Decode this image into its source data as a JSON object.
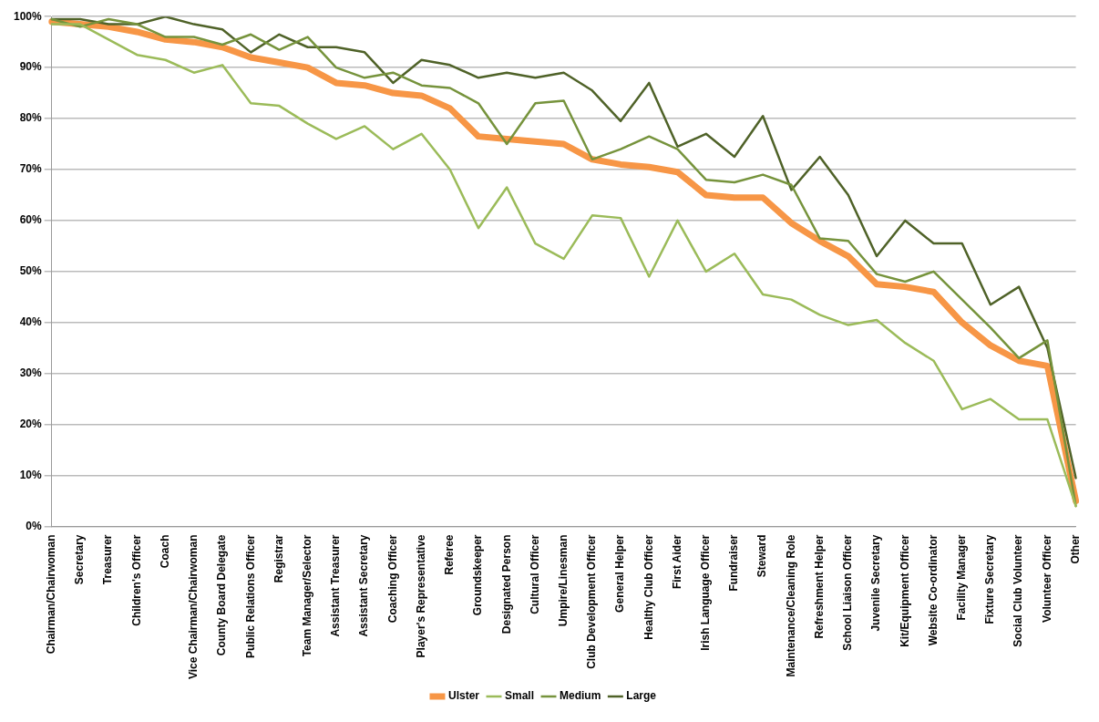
{
  "chart_data": {
    "type": "line",
    "categories": [
      "Chairman/Chairwoman",
      "Secretary",
      "Treasurer",
      "Children's Officer",
      "Coach",
      "Vice Chairman/Chairwoman",
      "County Board Delegate",
      "Public Relations Officer",
      "Registrar",
      "Team Manager/Selector",
      "Assistant Treasurer",
      "Assistant Secretary",
      "Coaching Officer",
      "Player's Representative",
      "Referee",
      "Groundskeeper",
      "Designated Person",
      "Cultural Officer",
      "Umpire/Linesman",
      "Club Development Officer",
      "General Helper",
      "Healthy Club Officer",
      "First Aider",
      "Irish Language Officer",
      "Fundraiser",
      "Steward",
      "Maintenance/Cleaning Role",
      "Refreshment Helper",
      "School Liaison Officer",
      "Juvenile Secretary",
      "Kit/Equipment Officer",
      "Website Co-ordinator",
      "Facility Manager",
      "Fixture Secretary",
      "Social Club Volunteer",
      "Volunteer Officer",
      "Other"
    ],
    "series": [
      {
        "name": "Ulster",
        "color": "#f79646",
        "values": [
          99,
          98.5,
          98,
          97,
          95.5,
          95,
          94,
          92,
          91,
          90,
          87,
          86.5,
          85,
          84.5,
          82,
          76.5,
          76,
          75.5,
          75,
          72,
          71,
          70.5,
          69.5,
          65,
          64.5,
          64.5,
          59.5,
          56,
          53,
          47.5,
          47,
          46,
          40,
          35.5,
          32.5,
          31.5,
          5
        ]
      },
      {
        "name": "Small",
        "color": "#9bbb59",
        "values": [
          98.5,
          98.5,
          95.5,
          92.5,
          91.5,
          89,
          90.5,
          83,
          82.5,
          79,
          76,
          78.5,
          74,
          77,
          70,
          58.5,
          66.5,
          55.5,
          52.5,
          61,
          60.5,
          49,
          60,
          50,
          53.5,
          45.5,
          44.5,
          41.5,
          39.5,
          40.5,
          36,
          32.5,
          23,
          25,
          21,
          21,
          4
        ]
      },
      {
        "name": "Medium",
        "color": "#76933c",
        "values": [
          99.5,
          98,
          99.5,
          98.5,
          96,
          96,
          94.5,
          96.5,
          93.5,
          96,
          90,
          88,
          89,
          86.5,
          86,
          83,
          75,
          83,
          83.5,
          72,
          74,
          76.5,
          74,
          68,
          67.5,
          69,
          67,
          56.5,
          56,
          49.5,
          48,
          50,
          44.5,
          39,
          33,
          36.5,
          4
        ]
      },
      {
        "name": "Large",
        "color": "#4f6228",
        "values": [
          99.5,
          99.5,
          98.5,
          98.5,
          100,
          98.5,
          97.5,
          93,
          96.5,
          94,
          94,
          93,
          87,
          91.5,
          90.5,
          88,
          89,
          88,
          89,
          85.5,
          79.5,
          87,
          74.5,
          77,
          72.5,
          80.5,
          66,
          72.5,
          65,
          53,
          60,
          55.5,
          55.5,
          43.5,
          47,
          35,
          9.5
        ]
      }
    ],
    "ylim": [
      0,
      100
    ],
    "yticks": [
      {
        "value": 0,
        "label": "0%"
      },
      {
        "value": 10,
        "label": "10%"
      },
      {
        "value": 20,
        "label": "20%"
      },
      {
        "value": 30,
        "label": "30%"
      },
      {
        "value": 40,
        "label": "40%"
      },
      {
        "value": 50,
        "label": "50%"
      },
      {
        "value": 60,
        "label": "60%"
      },
      {
        "value": 70,
        "label": "70%"
      },
      {
        "value": 80,
        "label": "80%"
      },
      {
        "value": 90,
        "label": "90%"
      },
      {
        "value": 100,
        "label": "100%"
      }
    ],
    "grid": "y",
    "legend": "bottom",
    "marker": "none",
    "line_style": "solid"
  }
}
